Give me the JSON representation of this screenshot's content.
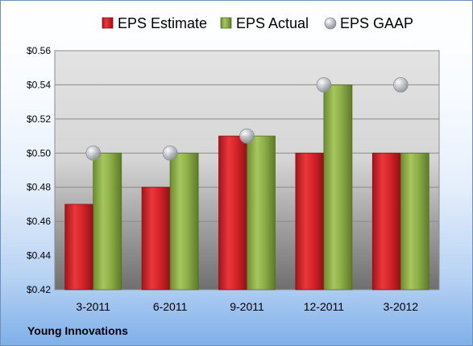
{
  "footer": {
    "company": "Young Innovations"
  },
  "chart_data": {
    "type": "bar",
    "title": "",
    "xlabel": "",
    "ylabel": "",
    "categories": [
      "3-2011",
      "6-2011",
      "9-2011",
      "12-2011",
      "3-2012"
    ],
    "ylim": [
      0.42,
      0.56
    ],
    "yticks": [
      0.42,
      0.44,
      0.46,
      0.48,
      0.5,
      0.52,
      0.54,
      0.56
    ],
    "ytick_labels": [
      "$0.42",
      "$0.44",
      "$0.46",
      "$0.48",
      "$0.50",
      "$0.52",
      "$0.54",
      "$0.56"
    ],
    "grid": true,
    "legend_position": "top",
    "series": [
      {
        "name": "EPS Estimate",
        "kind": "bar",
        "color": "#d9252a",
        "values": [
          0.47,
          0.48,
          0.51,
          0.5,
          0.5
        ]
      },
      {
        "name": "EPS Actual",
        "kind": "bar",
        "color": "#8fb04a",
        "values": [
          0.5,
          0.5,
          0.51,
          0.54,
          0.5
        ]
      },
      {
        "name": "EPS GAAP",
        "kind": "marker",
        "color": "#b8bcc4",
        "values": [
          0.5,
          0.5,
          0.51,
          0.54,
          0.54
        ]
      }
    ]
  }
}
